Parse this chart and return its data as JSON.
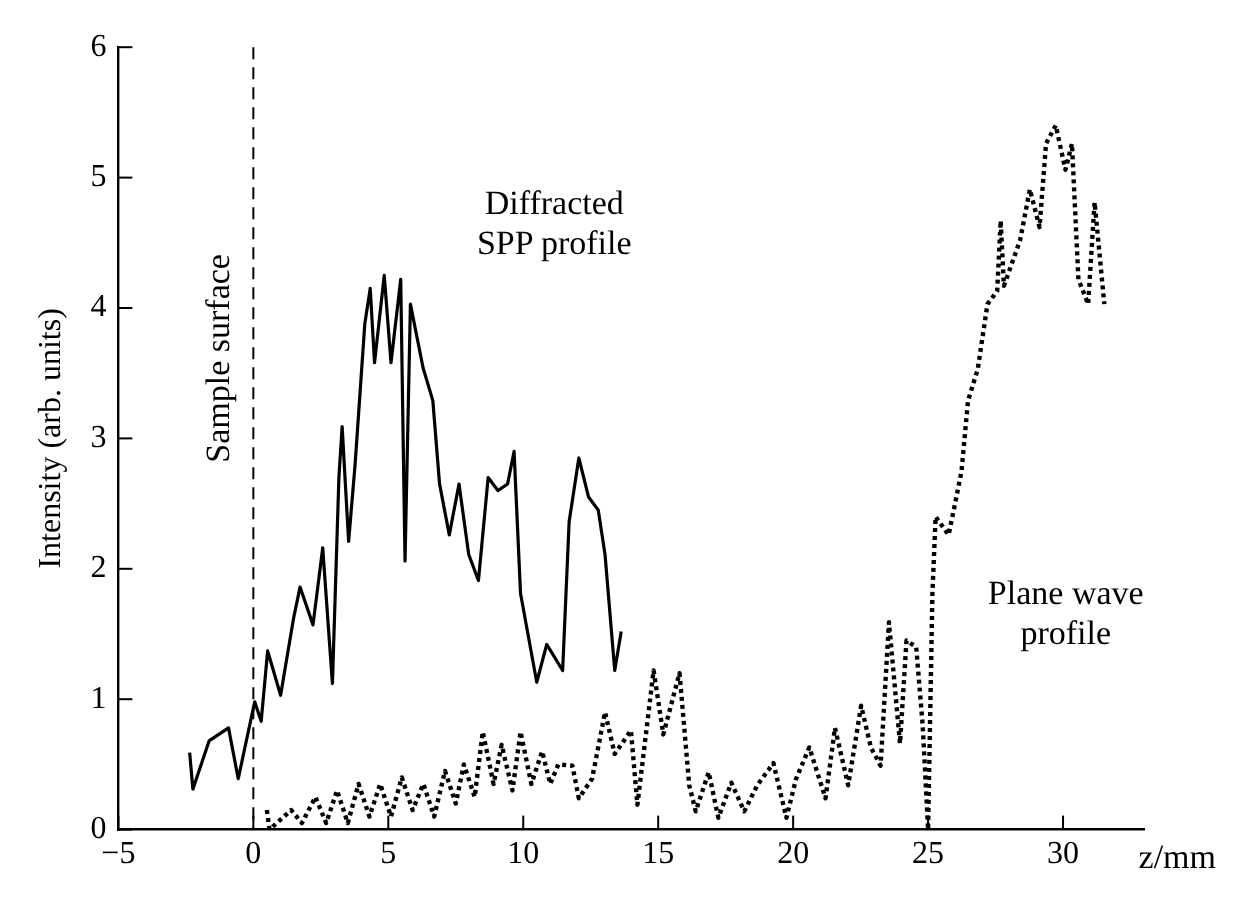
{
  "chart_data": {
    "type": "line",
    "xlabel": "z/mm",
    "ylabel": "Intensity (arb. units)",
    "xlim": [
      -5,
      33
    ],
    "xticks": [
      {
        "value": -5,
        "label": "−5"
      },
      0,
      5,
      10,
      15,
      20,
      25,
      30
    ],
    "ylim": [
      0,
      6
    ],
    "yticks": [
      0,
      1,
      2,
      3,
      4,
      5,
      6
    ],
    "marker": "none",
    "series": [
      {
        "name": "Diffracted SPP profile",
        "color": "#000000",
        "line_style": "solid",
        "x": [
          -2.36,
          -2.24,
          -1.64,
          -0.92,
          -0.56,
          0.05,
          0.29,
          0.53,
          1.01,
          1.49,
          1.73,
          2.21,
          2.57,
          2.93,
          3.17,
          3.29,
          3.53,
          3.77,
          4.13,
          4.33,
          4.49,
          4.85,
          5.1,
          5.46,
          5.62,
          5.82,
          6.29,
          6.65,
          6.9,
          7.26,
          7.62,
          7.98,
          8.34,
          8.7,
          9.06,
          9.42,
          9.66,
          9.9,
          10.5,
          10.87,
          11.46,
          11.7,
          12.06,
          12.42,
          12.78,
          13.03,
          13.39,
          13.63
        ],
        "values": [
          0.59,
          0.31,
          0.68,
          0.78,
          0.39,
          0.98,
          0.83,
          1.37,
          1.03,
          1.62,
          1.86,
          1.57,
          2.16,
          1.12,
          2.7,
          3.09,
          2.21,
          2.8,
          3.88,
          4.15,
          3.58,
          4.25,
          3.58,
          4.22,
          2.06,
          4.03,
          3.54,
          3.29,
          2.65,
          2.26,
          2.65,
          2.11,
          1.91,
          2.7,
          2.6,
          2.65,
          2.9,
          1.81,
          1.13,
          1.42,
          1.22,
          2.36,
          2.85,
          2.55,
          2.45,
          2.11,
          1.22,
          1.52
        ]
      },
      {
        "name": "Plane wave profile",
        "color": "#000000",
        "line_style": "dotted",
        "x": [
          0.5,
          0.6,
          1.4,
          1.8,
          2.3,
          2.7,
          3.1,
          3.5,
          3.9,
          4.3,
          4.7,
          5.1,
          5.5,
          5.9,
          6.3,
          6.7,
          7.1,
          7.5,
          7.8,
          8.2,
          8.5,
          8.9,
          9.2,
          9.6,
          9.9,
          10.3,
          10.7,
          11.0,
          11.3,
          11.82,
          12.06,
          12.55,
          13.03,
          13.39,
          13.99,
          14.23,
          14.83,
          15.19,
          15.79,
          16.15,
          16.39,
          16.87,
          17.23,
          17.71,
          18.19,
          18.67,
          19.27,
          19.75,
          20.11,
          20.6,
          21.2,
          21.55,
          22.04,
          22.52,
          22.88,
          23.24,
          23.55,
          23.96,
          24.2,
          24.56,
          24.8,
          25.0,
          25.16,
          25.28,
          25.76,
          26.0,
          26.24,
          26.48,
          26.84,
          27.2,
          27.56,
          27.69,
          27.81,
          28.41,
          28.77,
          29.13,
          29.37,
          29.73,
          30.09,
          30.33,
          30.57,
          30.93,
          31.17,
          31.53
        ],
        "values": [
          0.15,
          0,
          0.15,
          0.05,
          0.25,
          0.05,
          0.3,
          0.05,
          0.35,
          0.1,
          0.35,
          0.1,
          0.4,
          0.15,
          0.35,
          0.1,
          0.45,
          0.2,
          0.5,
          0.25,
          0.75,
          0.35,
          0.65,
          0.3,
          0.75,
          0.35,
          0.6,
          0.35,
          0.5,
          0.49,
          0.24,
          0.39,
          0.9,
          0.58,
          0.76,
          0.19,
          1.22,
          0.73,
          1.2,
          0.34,
          0.14,
          0.44,
          0.09,
          0.36,
          0.14,
          0.34,
          0.51,
          0.09,
          0.39,
          0.63,
          0.24,
          0.78,
          0.34,
          0.95,
          0.63,
          0.49,
          1.59,
          0.66,
          1.45,
          1.4,
          0.8,
          0,
          1.81,
          2.4,
          2.26,
          2.5,
          2.75,
          3.29,
          3.53,
          4.03,
          4.13,
          4.67,
          4.17,
          4.52,
          4.91,
          4.62,
          5.26,
          5.4,
          5.06,
          5.26,
          4.22,
          4.03,
          4.81,
          4.03
        ]
      }
    ],
    "ref_lines": [
      {
        "axis": "x",
        "value": 0,
        "label": "Sample surface",
        "line_style": "dashed",
        "color": "#000000"
      }
    ]
  }
}
